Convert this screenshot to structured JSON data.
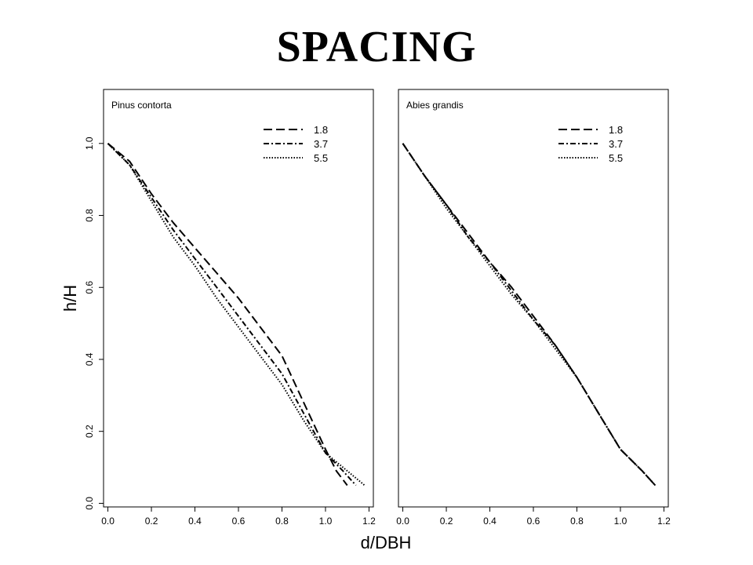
{
  "page": {
    "title": "SPACING"
  },
  "chart_data": {
    "type": "line",
    "xlabel": "d/DBH",
    "ylabel": "h/H",
    "xlim": [
      -0.02,
      1.22
    ],
    "ylim": [
      -0.01,
      1.15
    ],
    "x_ticks": [
      "0.0",
      "0.2",
      "0.4",
      "0.6",
      "0.8",
      "1.0",
      "1.2"
    ],
    "y_ticks": [
      "0.0",
      "0.2",
      "0.4",
      "0.6",
      "0.8",
      "1.0"
    ],
    "legend_position": "top-right",
    "panels": [
      {
        "label": "Pinus contorta",
        "series": [
          {
            "name": "1.8",
            "style": "dashed",
            "points": [
              [
                0.0,
                1.0
              ],
              [
                0.1,
                0.95
              ],
              [
                0.2,
                0.86
              ],
              [
                0.3,
                0.78
              ],
              [
                0.4,
                0.71
              ],
              [
                0.5,
                0.64
              ],
              [
                0.6,
                0.57
              ],
              [
                0.7,
                0.49
              ],
              [
                0.8,
                0.41
              ],
              [
                0.9,
                0.28
              ],
              [
                1.0,
                0.15
              ],
              [
                1.05,
                0.09
              ],
              [
                1.1,
                0.05
              ]
            ]
          },
          {
            "name": "3.7",
            "style": "dashdot",
            "points": [
              [
                0.0,
                1.0
              ],
              [
                0.1,
                0.94
              ],
              [
                0.2,
                0.85
              ],
              [
                0.3,
                0.76
              ],
              [
                0.4,
                0.68
              ],
              [
                0.5,
                0.6
              ],
              [
                0.6,
                0.52
              ],
              [
                0.7,
                0.44
              ],
              [
                0.8,
                0.36
              ],
              [
                0.9,
                0.25
              ],
              [
                1.0,
                0.14
              ],
              [
                1.08,
                0.09
              ],
              [
                1.14,
                0.05
              ]
            ]
          },
          {
            "name": "5.5",
            "style": "dotted",
            "points": [
              [
                0.0,
                1.0
              ],
              [
                0.1,
                0.94
              ],
              [
                0.2,
                0.84
              ],
              [
                0.3,
                0.74
              ],
              [
                0.4,
                0.66
              ],
              [
                0.5,
                0.57
              ],
              [
                0.6,
                0.49
              ],
              [
                0.7,
                0.41
              ],
              [
                0.8,
                0.33
              ],
              [
                0.9,
                0.23
              ],
              [
                1.0,
                0.14
              ],
              [
                1.1,
                0.09
              ],
              [
                1.18,
                0.05
              ]
            ]
          }
        ]
      },
      {
        "label": "Abies grandis",
        "series": [
          {
            "name": "1.8",
            "style": "dashed",
            "points": [
              [
                0.0,
                1.0
              ],
              [
                0.1,
                0.91
              ],
              [
                0.2,
                0.83
              ],
              [
                0.3,
                0.75
              ],
              [
                0.4,
                0.67
              ],
              [
                0.5,
                0.6
              ],
              [
                0.6,
                0.52
              ],
              [
                0.7,
                0.44
              ],
              [
                0.8,
                0.35
              ],
              [
                0.9,
                0.25
              ],
              [
                1.0,
                0.15
              ],
              [
                1.1,
                0.09
              ],
              [
                1.16,
                0.05
              ]
            ]
          },
          {
            "name": "3.7",
            "style": "dashdot",
            "points": [
              [
                0.0,
                1.0
              ],
              [
                0.1,
                0.91
              ],
              [
                0.2,
                0.83
              ],
              [
                0.3,
                0.74
              ],
              [
                0.4,
                0.67
              ],
              [
                0.5,
                0.59
              ],
              [
                0.6,
                0.51
              ],
              [
                0.7,
                0.44
              ],
              [
                0.8,
                0.35
              ],
              [
                0.9,
                0.25
              ],
              [
                1.0,
                0.15
              ],
              [
                1.1,
                0.09
              ],
              [
                1.16,
                0.05
              ]
            ]
          },
          {
            "name": "5.5",
            "style": "dotted",
            "points": [
              [
                0.0,
                1.0
              ],
              [
                0.1,
                0.91
              ],
              [
                0.2,
                0.82
              ],
              [
                0.3,
                0.74
              ],
              [
                0.4,
                0.66
              ],
              [
                0.5,
                0.58
              ],
              [
                0.6,
                0.51
              ],
              [
                0.7,
                0.43
              ],
              [
                0.8,
                0.35
              ],
              [
                0.9,
                0.25
              ],
              [
                1.0,
                0.15
              ],
              [
                1.1,
                0.09
              ],
              [
                1.16,
                0.05
              ]
            ]
          }
        ]
      }
    ]
  }
}
